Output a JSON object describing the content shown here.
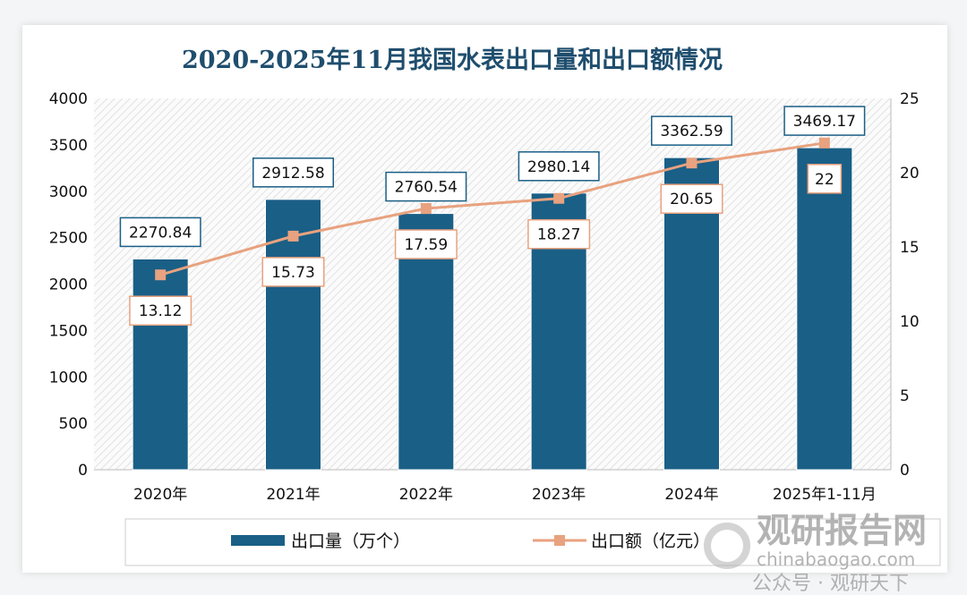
{
  "chart_data": {
    "type": "bar+line",
    "title": "2020-2025年11月我国水表出口量和出口额情况",
    "categories": [
      "2020年",
      "2021年",
      "2022年",
      "2023年",
      "2024年",
      "2025年1-11月"
    ],
    "series": [
      {
        "name": "出口量（万个）",
        "type": "bar",
        "axis": "left",
        "color": "#1a5f86",
        "values": [
          2270.84,
          2912.58,
          2760.54,
          2980.14,
          3362.59,
          3469.17
        ]
      },
      {
        "name": "出口额（亿元）",
        "type": "line",
        "axis": "right",
        "color": "#e8a27f",
        "values": [
          13.12,
          15.73,
          17.59,
          18.27,
          20.65,
          22
        ]
      }
    ],
    "y_left": {
      "range": [
        0,
        4000
      ],
      "ticks": [
        0,
        500,
        1000,
        1500,
        2000,
        2500,
        3000,
        3500,
        4000
      ]
    },
    "y_right": {
      "range": [
        0,
        25
      ],
      "ticks": [
        0,
        5,
        10,
        15,
        20,
        25
      ]
    },
    "legend_position": "bottom",
    "grid": false
  },
  "watermark": {
    "brand": "观研报告网",
    "site": "chinabaogao.com",
    "wechat": "公众号 · 观研天下"
  }
}
